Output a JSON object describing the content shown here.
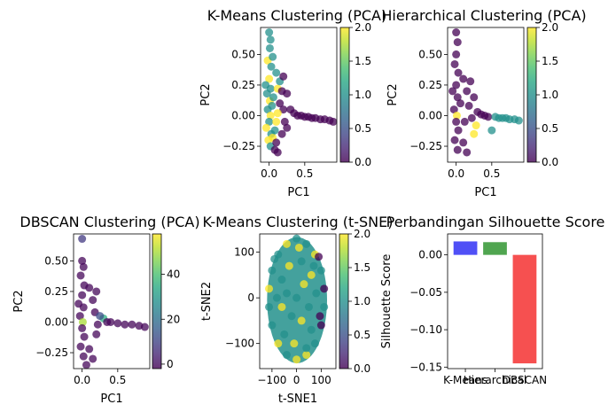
{
  "chart_data": [
    {
      "type": "scatter",
      "title": "K-Means Clustering (PCA)",
      "xlabel": "PC1",
      "ylabel": "PC2",
      "xlim": [
        -0.12,
        0.95
      ],
      "ylim": [
        -0.38,
        0.72
      ],
      "xticks": [
        {
          "v": 0.0,
          "t": "0.0"
        },
        {
          "v": 0.5,
          "t": "0.5"
        }
      ],
      "yticks": [
        {
          "v": -0.25,
          "t": "−0.25"
        },
        {
          "v": 0.0,
          "t": "0.00"
        },
        {
          "v": 0.25,
          "t": "0.25"
        },
        {
          "v": 0.5,
          "t": "0.50"
        }
      ],
      "colorbar": {
        "min": 0,
        "max": 2,
        "ticks": [
          {
            "v": 0,
            "t": "0.0"
          },
          {
            "v": 0.5,
            "t": "0.5"
          },
          {
            "v": 1.0,
            "t": "1.0"
          },
          {
            "v": 1.5,
            "t": "1.5"
          },
          {
            "v": 2.0,
            "t": "2.0"
          }
        ]
      },
      "points": [
        {
          "x": 0.0,
          "y": 0.68,
          "c": 1
        },
        {
          "x": 0.02,
          "y": 0.62,
          "c": 1
        },
        {
          "x": 0.01,
          "y": 0.55,
          "c": 1
        },
        {
          "x": -0.02,
          "y": 0.45,
          "c": 2
        },
        {
          "x": 0.03,
          "y": 0.4,
          "c": 1
        },
        {
          "x": 0.05,
          "y": 0.48,
          "c": 1
        },
        {
          "x": 0.0,
          "y": 0.3,
          "c": 2
        },
        {
          "x": 0.02,
          "y": 0.22,
          "c": 1
        },
        {
          "x": -0.03,
          "y": 0.18,
          "c": 1
        },
        {
          "x": 0.01,
          "y": 0.12,
          "c": 2
        },
        {
          "x": 0.04,
          "y": 0.08,
          "c": 1
        },
        {
          "x": -0.02,
          "y": 0.05,
          "c": 1
        },
        {
          "x": 0.02,
          "y": 0.0,
          "c": 2
        },
        {
          "x": 0.0,
          "y": -0.05,
          "c": 1
        },
        {
          "x": -0.04,
          "y": -0.1,
          "c": 2
        },
        {
          "x": 0.03,
          "y": -0.15,
          "c": 1
        },
        {
          "x": -0.01,
          "y": -0.2,
          "c": 2
        },
        {
          "x": 0.02,
          "y": -0.25,
          "c": 1
        },
        {
          "x": 0.05,
          "y": -0.18,
          "c": 2
        },
        {
          "x": 0.08,
          "y": -0.12,
          "c": 1
        },
        {
          "x": 0.1,
          "y": -0.22,
          "c": 0
        },
        {
          "x": 0.1,
          "y": 0.35,
          "c": 1
        },
        {
          "x": 0.12,
          "y": 0.22,
          "c": 2
        },
        {
          "x": 0.15,
          "y": 0.28,
          "c": 1
        },
        {
          "x": 0.18,
          "y": 0.2,
          "c": 0
        },
        {
          "x": 0.2,
          "y": 0.32,
          "c": 0
        },
        {
          "x": 0.25,
          "y": 0.18,
          "c": 0
        },
        {
          "x": 0.15,
          "y": 0.1,
          "c": 0
        },
        {
          "x": 0.2,
          "y": 0.05,
          "c": 0
        },
        {
          "x": 0.22,
          "y": -0.05,
          "c": 0
        },
        {
          "x": 0.3,
          "y": 0.05,
          "c": 0
        },
        {
          "x": 0.35,
          "y": 0.02,
          "c": 0
        },
        {
          "x": 0.4,
          "y": 0.0,
          "c": 0
        },
        {
          "x": 0.45,
          "y": 0.0,
          "c": 0
        },
        {
          "x": 0.5,
          "y": -0.01,
          "c": 0
        },
        {
          "x": 0.55,
          "y": -0.01,
          "c": 0
        },
        {
          "x": 0.6,
          "y": -0.02,
          "c": 0
        },
        {
          "x": 0.65,
          "y": -0.02,
          "c": 0
        },
        {
          "x": 0.72,
          "y": -0.03,
          "c": 0
        },
        {
          "x": 0.78,
          "y": -0.03,
          "c": 0
        },
        {
          "x": 0.85,
          "y": -0.04,
          "c": 0
        },
        {
          "x": 0.9,
          "y": -0.05,
          "c": 0
        },
        {
          "x": 0.08,
          "y": -0.28,
          "c": 0
        },
        {
          "x": 0.12,
          "y": -0.3,
          "c": 0
        },
        {
          "x": 0.18,
          "y": -0.15,
          "c": 0
        },
        {
          "x": 0.25,
          "y": -0.1,
          "c": 0
        },
        {
          "x": 0.1,
          "y": -0.05,
          "c": 2
        },
        {
          "x": 0.06,
          "y": 0.15,
          "c": 1
        },
        {
          "x": 0.12,
          "y": 0.02,
          "c": 2
        },
        {
          "x": -0.05,
          "y": 0.25,
          "c": 1
        }
      ]
    },
    {
      "type": "scatter",
      "title": "Hierarchical Clustering (PCA)",
      "xlabel": "PC1",
      "ylabel": "PC2",
      "xlim": [
        -0.12,
        0.95
      ],
      "ylim": [
        -0.38,
        0.72
      ],
      "xticks": [
        {
          "v": 0.0,
          "t": "0.0"
        },
        {
          "v": 0.5,
          "t": "0.5"
        }
      ],
      "yticks": [
        {
          "v": -0.25,
          "t": "−0.25"
        },
        {
          "v": 0.0,
          "t": "0.00"
        },
        {
          "v": 0.25,
          "t": "0.25"
        },
        {
          "v": 0.5,
          "t": "0.50"
        }
      ],
      "colorbar": {
        "min": 0,
        "max": 2,
        "ticks": [
          {
            "v": 0,
            "t": "0.0"
          },
          {
            "v": 0.5,
            "t": "0.5"
          },
          {
            "v": 1.0,
            "t": "1.0"
          },
          {
            "v": 1.5,
            "t": "1.5"
          },
          {
            "v": 2.0,
            "t": "2.0"
          }
        ]
      },
      "points": [
        {
          "x": 0.0,
          "y": 0.68,
          "c": 0
        },
        {
          "x": 0.02,
          "y": 0.6,
          "c": 0
        },
        {
          "x": 0.0,
          "y": 0.5,
          "c": 0
        },
        {
          "x": -0.02,
          "y": 0.42,
          "c": 0
        },
        {
          "x": 0.03,
          "y": 0.35,
          "c": 0
        },
        {
          "x": 0.0,
          "y": 0.25,
          "c": 0
        },
        {
          "x": 0.02,
          "y": 0.15,
          "c": 0
        },
        {
          "x": -0.03,
          "y": 0.05,
          "c": 0
        },
        {
          "x": 0.01,
          "y": 0.0,
          "c": 2
        },
        {
          "x": 0.0,
          "y": -0.05,
          "c": 0
        },
        {
          "x": 0.03,
          "y": -0.12,
          "c": 0
        },
        {
          "x": -0.02,
          "y": -0.2,
          "c": 0
        },
        {
          "x": 0.02,
          "y": -0.28,
          "c": 0
        },
        {
          "x": 0.1,
          "y": 0.3,
          "c": 0
        },
        {
          "x": 0.15,
          "y": 0.2,
          "c": 0
        },
        {
          "x": 0.2,
          "y": 0.28,
          "c": 0
        },
        {
          "x": 0.25,
          "y": 0.15,
          "c": 0
        },
        {
          "x": 0.18,
          "y": 0.08,
          "c": 0
        },
        {
          "x": 0.22,
          "y": -0.02,
          "c": 0
        },
        {
          "x": 0.3,
          "y": 0.03,
          "c": 0
        },
        {
          "x": 0.35,
          "y": 0.01,
          "c": 0
        },
        {
          "x": 0.4,
          "y": 0.0,
          "c": 0
        },
        {
          "x": 0.45,
          "y": -0.01,
          "c": 0
        },
        {
          "x": 0.55,
          "y": -0.01,
          "c": 1
        },
        {
          "x": 0.6,
          "y": -0.02,
          "c": 1
        },
        {
          "x": 0.65,
          "y": -0.02,
          "c": 1
        },
        {
          "x": 0.7,
          "y": -0.02,
          "c": 1
        },
        {
          "x": 0.75,
          "y": -0.03,
          "c": 1
        },
        {
          "x": 0.82,
          "y": -0.03,
          "c": 1
        },
        {
          "x": 0.88,
          "y": -0.04,
          "c": 1
        },
        {
          "x": 0.5,
          "y": -0.12,
          "c": 1
        },
        {
          "x": 0.25,
          "y": -0.15,
          "c": 2
        },
        {
          "x": 0.28,
          "y": -0.08,
          "c": 2
        },
        {
          "x": 0.1,
          "y": -0.22,
          "c": 0
        },
        {
          "x": 0.15,
          "y": -0.3,
          "c": 0
        },
        {
          "x": 0.06,
          "y": 0.1,
          "c": 0
        },
        {
          "x": 0.12,
          "y": -0.05,
          "c": 0
        },
        {
          "x": -0.05,
          "y": 0.2,
          "c": 0
        }
      ]
    },
    {
      "type": "scatter",
      "title": "DBSCAN Clustering (PCA)",
      "xlabel": "PC1",
      "ylabel": "PC2",
      "xlim": [
        -0.12,
        0.95
      ],
      "ylim": [
        -0.38,
        0.72
      ],
      "xticks": [
        {
          "v": 0.0,
          "t": "0.0"
        },
        {
          "v": 0.5,
          "t": "0.5"
        }
      ],
      "yticks": [
        {
          "v": -0.25,
          "t": "−0.25"
        },
        {
          "v": 0.0,
          "t": "0.00"
        },
        {
          "v": 0.25,
          "t": "0.25"
        },
        {
          "v": 0.5,
          "t": "0.50"
        }
      ],
      "colorbar": {
        "min": -2,
        "max": 58,
        "ticks": [
          {
            "v": 0,
            "t": "0"
          },
          {
            "v": 20,
            "t": "20"
          },
          {
            "v": 40,
            "t": "40"
          }
        ]
      },
      "points": [
        {
          "x": 0.0,
          "y": 0.68,
          "c": 8
        },
        {
          "x": 0.0,
          "y": 0.5,
          "c": -1
        },
        {
          "x": 0.02,
          "y": 0.45,
          "c": -1
        },
        {
          "x": -0.02,
          "y": 0.38,
          "c": -1
        },
        {
          "x": 0.03,
          "y": 0.3,
          "c": -1
        },
        {
          "x": 0.0,
          "y": 0.22,
          "c": -1
        },
        {
          "x": 0.02,
          "y": 0.12,
          "c": -1
        },
        {
          "x": -0.03,
          "y": 0.05,
          "c": -1
        },
        {
          "x": 0.01,
          "y": 0.0,
          "c": 50
        },
        {
          "x": 0.0,
          "y": -0.05,
          "c": -1
        },
        {
          "x": 0.03,
          "y": -0.12,
          "c": -1
        },
        {
          "x": -0.02,
          "y": -0.2,
          "c": -1
        },
        {
          "x": 0.02,
          "y": -0.28,
          "c": -1
        },
        {
          "x": 0.1,
          "y": 0.28,
          "c": -1
        },
        {
          "x": 0.15,
          "y": 0.18,
          "c": -1
        },
        {
          "x": 0.2,
          "y": 0.25,
          "c": -1
        },
        {
          "x": 0.18,
          "y": 0.08,
          "c": -1
        },
        {
          "x": 0.22,
          "y": -0.02,
          "c": -1
        },
        {
          "x": 0.3,
          "y": 0.03,
          "c": 35
        },
        {
          "x": 0.35,
          "y": 0.0,
          "c": -1
        },
        {
          "x": 0.4,
          "y": 0.0,
          "c": -1
        },
        {
          "x": 0.5,
          "y": -0.01,
          "c": -1
        },
        {
          "x": 0.6,
          "y": -0.02,
          "c": -1
        },
        {
          "x": 0.7,
          "y": -0.02,
          "c": -1
        },
        {
          "x": 0.8,
          "y": -0.03,
          "c": -1
        },
        {
          "x": 0.88,
          "y": -0.04,
          "c": -1
        },
        {
          "x": 0.2,
          "y": -0.1,
          "c": -1
        },
        {
          "x": 0.1,
          "y": -0.22,
          "c": -1
        },
        {
          "x": 0.15,
          "y": -0.3,
          "c": -1
        },
        {
          "x": 0.25,
          "y": 0.05,
          "c": 12
        },
        {
          "x": -0.05,
          "y": 0.15,
          "c": -1
        },
        {
          "x": 0.06,
          "y": -0.35,
          "c": -1
        }
      ]
    },
    {
      "type": "scatter",
      "title": "K-Means Clustering (t-SNE)",
      "xlabel": "t-SNE1",
      "ylabel": "t-SNE2",
      "xlim": [
        -150,
        160
      ],
      "ylim": [
        -155,
        140
      ],
      "xticks": [
        {
          "v": -100,
          "t": "−100"
        },
        {
          "v": 0,
          "t": "0"
        },
        {
          "v": 100,
          "t": "100"
        }
      ],
      "yticks": [
        {
          "v": -100,
          "t": "−100"
        },
        {
          "v": 0,
          "t": "0"
        },
        {
          "v": 100,
          "t": "100"
        }
      ],
      "colorbar": {
        "min": 0,
        "max": 2,
        "ticks": [
          {
            "v": 0,
            "t": "0.0"
          },
          {
            "v": 0.5,
            "t": "0.5"
          },
          {
            "v": 1.0,
            "t": "1.0"
          },
          {
            "v": 1.5,
            "t": "1.5"
          },
          {
            "v": 2.0,
            "t": "2.0"
          }
        ]
      },
      "points": [
        {
          "x": 0,
          "y": 130,
          "c": 1
        },
        {
          "x": -40,
          "y": 118,
          "c": 2
        },
        {
          "x": 40,
          "y": 118,
          "c": 1
        },
        {
          "x": -75,
          "y": 95,
          "c": 1
        },
        {
          "x": 75,
          "y": 95,
          "c": 2
        },
        {
          "x": -100,
          "y": 60,
          "c": 1
        },
        {
          "x": 100,
          "y": 60,
          "c": 1
        },
        {
          "x": -112,
          "y": 20,
          "c": 2
        },
        {
          "x": 112,
          "y": 20,
          "c": 0
        },
        {
          "x": -112,
          "y": -20,
          "c": 1
        },
        {
          "x": 112,
          "y": -20,
          "c": 1
        },
        {
          "x": -100,
          "y": -60,
          "c": 1
        },
        {
          "x": 100,
          "y": -60,
          "c": 0
        },
        {
          "x": -75,
          "y": -100,
          "c": 2
        },
        {
          "x": 75,
          "y": -100,
          "c": 1
        },
        {
          "x": -40,
          "y": -125,
          "c": 1
        },
        {
          "x": 40,
          "y": -125,
          "c": 2
        },
        {
          "x": 0,
          "y": -135,
          "c": 2
        },
        {
          "x": -60,
          "y": 40,
          "c": 1
        },
        {
          "x": -30,
          "y": 70,
          "c": 2
        },
        {
          "x": 20,
          "y": 80,
          "c": 1
        },
        {
          "x": 60,
          "y": 50,
          "c": 2
        },
        {
          "x": 80,
          "y": 10,
          "c": 1
        },
        {
          "x": 50,
          "y": -20,
          "c": 1
        },
        {
          "x": 20,
          "y": -50,
          "c": 2
        },
        {
          "x": -20,
          "y": -40,
          "c": 1
        },
        {
          "x": -60,
          "y": -20,
          "c": 2
        },
        {
          "x": -80,
          "y": 0,
          "c": 1
        },
        {
          "x": 0,
          "y": 0,
          "c": 1
        },
        {
          "x": 30,
          "y": 30,
          "c": 2
        },
        {
          "x": -40,
          "y": 10,
          "c": 1
        },
        {
          "x": 60,
          "y": -70,
          "c": 1
        },
        {
          "x": -50,
          "y": -80,
          "c": 1
        },
        {
          "x": 90,
          "y": 90,
          "c": 0
        },
        {
          "x": 95,
          "y": -40,
          "c": 0
        },
        {
          "x": 10,
          "y": 110,
          "c": 2
        },
        {
          "x": -90,
          "y": 85,
          "c": 1
        },
        {
          "x": 40,
          "y": -110,
          "c": 1
        },
        {
          "x": -10,
          "y": -100,
          "c": 2
        },
        {
          "x": 70,
          "y": 70,
          "c": 1
        }
      ]
    },
    {
      "type": "bar",
      "title": "Perbandingan Silhouette Score",
      "xlabel": "",
      "ylabel": "Silhouette Score",
      "ylim": [
        -0.152,
        0.028
      ],
      "yticks": [
        {
          "v": 0.0,
          "t": "0.00"
        },
        {
          "v": -0.05,
          "t": "−0.05"
        },
        {
          "v": -0.1,
          "t": "−0.10"
        },
        {
          "v": -0.15,
          "t": "−0.15"
        }
      ],
      "categories": [
        "K-Means",
        "Hierarchical",
        "DBSCAN"
      ],
      "values": [
        0.018,
        0.017,
        -0.145
      ],
      "colors": [
        "#4747f5",
        "#47a047",
        "#f54747"
      ]
    }
  ]
}
